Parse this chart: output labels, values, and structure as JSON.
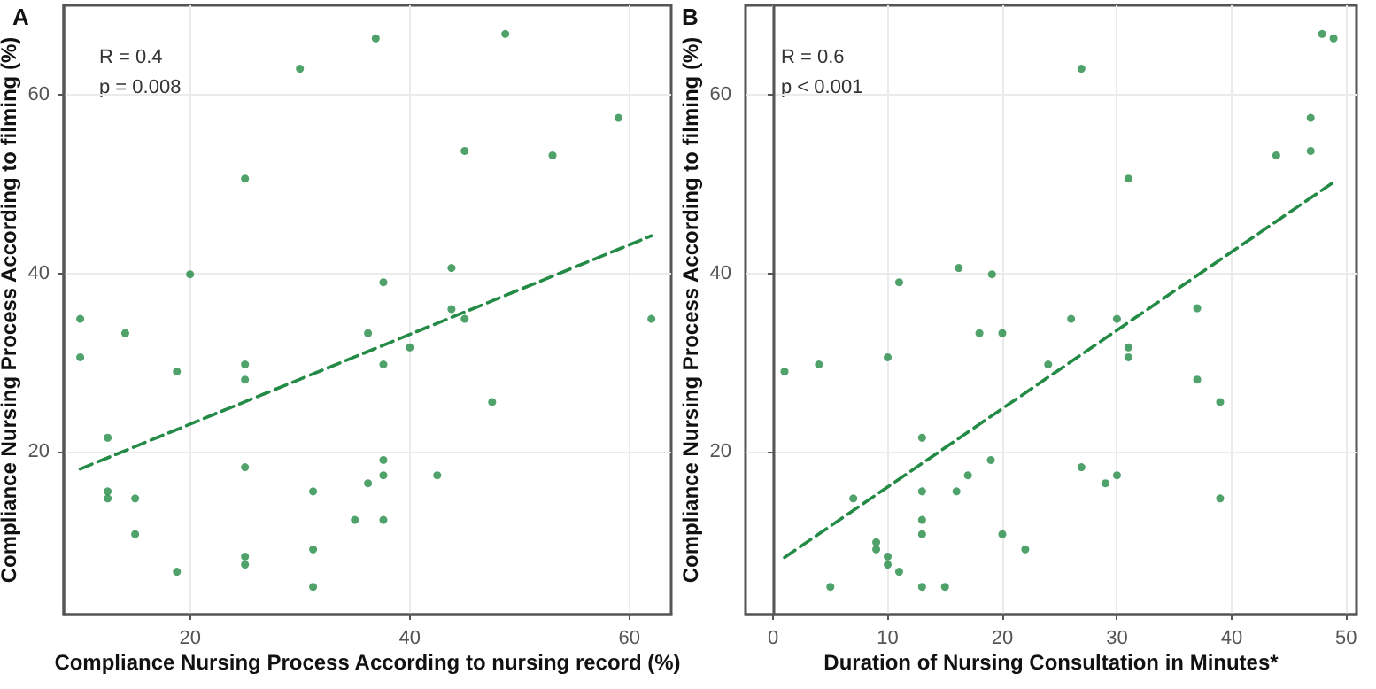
{
  "chart_data": [
    {
      "type": "scatter",
      "title": "A",
      "xlabel": "Compliance Nursing Process According to nursing record (%)",
      "ylabel": "Compliance Nursing Process According to filming (%)",
      "annotations": [
        "R = 0.4",
        "p = 0.008"
      ],
      "xlim": [
        8.5,
        63.8
      ],
      "ylim": [
        1.8,
        70
      ],
      "xticks": [
        20,
        40,
        60
      ],
      "yticks": [
        20,
        40,
        60
      ],
      "grid": true,
      "marker": "circle",
      "series": [
        {
          "color": "#238b45",
          "x": [
            36.9,
            48.7,
            30.0,
            59.0,
            45.0,
            53.0,
            25.0,
            20.0,
            37.6,
            43.8,
            10.0,
            14.1,
            36.2,
            43.8,
            45.0,
            62.0,
            40.0,
            10.0,
            18.8,
            25.0,
            25.0,
            37.6,
            47.5,
            12.5,
            25.0,
            37.6,
            37.6,
            36.2,
            42.5,
            31.2,
            12.5,
            12.5,
            15.0,
            15.0,
            35.0,
            37.6,
            31.2,
            18.8,
            25.0,
            25.0,
            31.2
          ],
          "values": [
            66.3,
            66.8,
            62.9,
            57.4,
            53.7,
            53.2,
            50.6,
            39.9,
            39.0,
            40.6,
            34.9,
            33.3,
            33.3,
            36.0,
            34.9,
            34.9,
            31.7,
            30.6,
            29.0,
            29.8,
            28.1,
            29.8,
            25.6,
            21.6,
            18.3,
            19.1,
            17.4,
            16.5,
            17.4,
            15.6,
            15.6,
            14.8,
            14.8,
            10.8,
            12.4,
            12.4,
            9.1,
            6.6,
            8.3,
            7.4,
            4.9
          ]
        },
        {
          "type": "line",
          "color": "#238b45",
          "line_style": "dashed",
          "marker": "none",
          "x": [
            10,
            62
          ],
          "values": [
            18.1,
            44.2
          ]
        }
      ]
    },
    {
      "type": "scatter",
      "title": "B",
      "xlabel": "Duration of Nursing Consultation in Minutes*",
      "ylabel": "Compliance Nursing Process According to filming (%)",
      "annotations": [
        "R = 0.6",
        "p < 0.001"
      ],
      "xlim": [
        -2.4,
        50.9
      ],
      "ylim": [
        1.8,
        70
      ],
      "xticks": [
        0,
        10,
        20,
        30,
        40,
        50
      ],
      "yticks": [
        20,
        40,
        60
      ],
      "grid": true,
      "marker": "circle",
      "series": [
        {
          "color": "#238b45",
          "x": [
            47.9,
            48.9,
            26.9,
            46.9,
            43.9,
            46.9,
            31.0,
            11.0,
            16.2,
            19.1,
            37.0,
            26.0,
            30.0,
            18.0,
            20.0,
            31.0,
            31.0,
            1.0,
            4.0,
            10.0,
            24.0,
            37.0,
            39.0,
            13.0,
            19.0,
            26.9,
            17.0,
            30.0,
            29.0,
            13.0,
            16.0,
            7.0,
            39.0,
            13.0,
            13.0,
            20.0,
            9.0,
            9.0,
            22.0,
            10.0,
            10.0,
            11.0,
            5.0,
            13.0,
            15.0
          ],
          "values": [
            66.8,
            66.3,
            62.9,
            57.4,
            53.2,
            53.7,
            50.6,
            39.0,
            40.6,
            39.9,
            36.1,
            34.9,
            34.9,
            33.3,
            33.3,
            31.7,
            30.6,
            29.0,
            29.8,
            30.6,
            29.8,
            28.1,
            25.6,
            21.6,
            19.1,
            18.3,
            17.4,
            17.4,
            16.5,
            15.6,
            15.6,
            14.8,
            14.8,
            12.4,
            10.8,
            10.8,
            9.9,
            9.1,
            9.1,
            8.3,
            7.4,
            6.6,
            4.9,
            4.9,
            4.9
          ]
        },
        {
          "type": "line",
          "color": "#238b45",
          "line_style": "dashed",
          "marker": "none",
          "x": [
            1,
            48.9
          ],
          "values": [
            8.2,
            50.2
          ]
        }
      ]
    }
  ]
}
